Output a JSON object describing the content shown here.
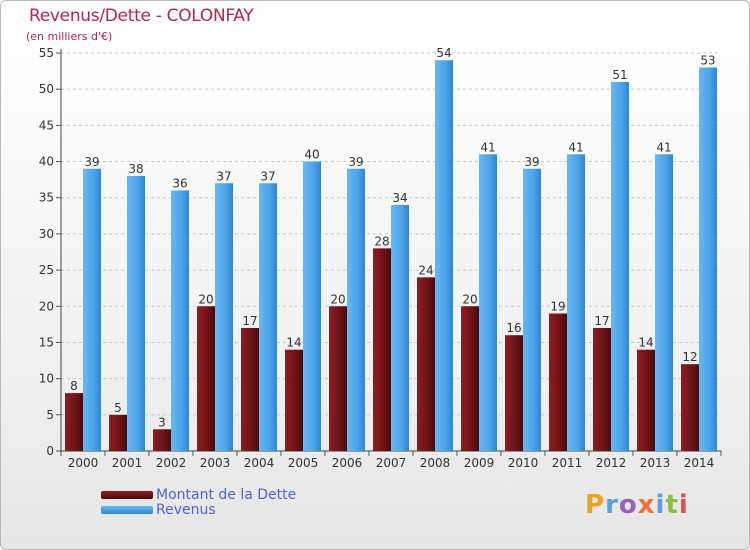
{
  "header": {
    "title": "Revenus/Dette - COLONFAY",
    "subtitle": "(en milliers d'€)"
  },
  "legend": {
    "debt_label": "Montant de la Dette",
    "revenue_label": "Revenus"
  },
  "logo": {
    "text": "Proxiti",
    "colors": [
      "#f0a020",
      "#5aa0e0",
      "#9a60c0",
      "#f07030",
      "#5aa0e0",
      "#8ac040",
      "#e05050"
    ]
  },
  "colors": {
    "debt": "#7a1418",
    "revenue": "#4aa3ea",
    "title": "#b3264a",
    "legend_text": "#4f63d6"
  },
  "chart_data": {
    "type": "bar",
    "categories": [
      "2000",
      "2001",
      "2002",
      "2003",
      "2004",
      "2005",
      "2006",
      "2007",
      "2008",
      "2009",
      "2010",
      "2011",
      "2012",
      "2013",
      "2014"
    ],
    "series": [
      {
        "name": "Montant de la Dette",
        "values": [
          8,
          5,
          3,
          20,
          17,
          14,
          20,
          28,
          24,
          20,
          16,
          19,
          17,
          14,
          12
        ]
      },
      {
        "name": "Revenus",
        "values": [
          39,
          38,
          36,
          37,
          37,
          40,
          39,
          34,
          54,
          41,
          39,
          41,
          51,
          41,
          53
        ]
      }
    ],
    "ylim": [
      0,
      55
    ],
    "yticks": [
      0,
      5,
      10,
      15,
      20,
      25,
      30,
      35,
      40,
      45,
      50,
      55
    ],
    "grid": true
  }
}
